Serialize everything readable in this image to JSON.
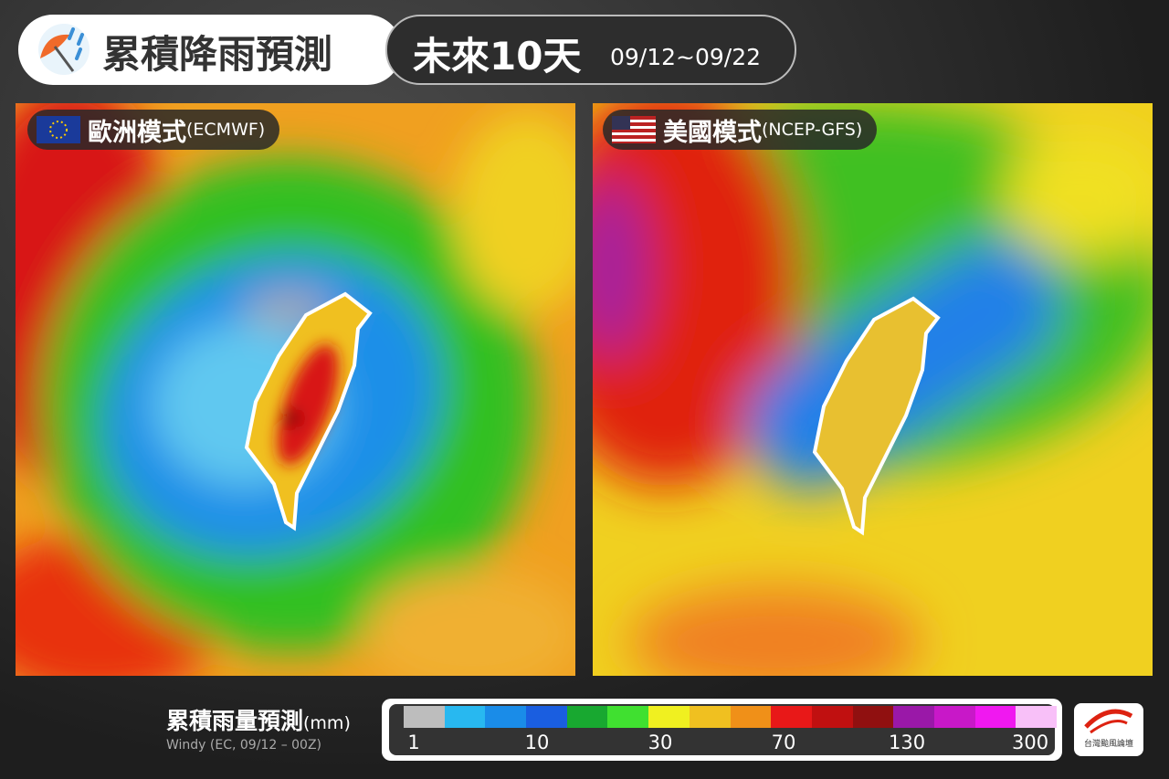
{
  "header": {
    "title": "累積降雨預測",
    "period": "未來10天",
    "dates": "09/12~09/22"
  },
  "panels": [
    {
      "name": "歐洲模式",
      "model": "(ECMWF)"
    },
    {
      "name": "美國模式",
      "model": "(NCEP-GFS)"
    }
  ],
  "legend": {
    "title": "累積雨量預測",
    "unit": "(mm)",
    "source": "Windy (EC, 09/12 – 00Z)",
    "ticks": [
      1,
      10,
      30,
      70,
      130,
      300
    ]
  },
  "logo": {
    "text": "台灣颱風論壇"
  }
}
